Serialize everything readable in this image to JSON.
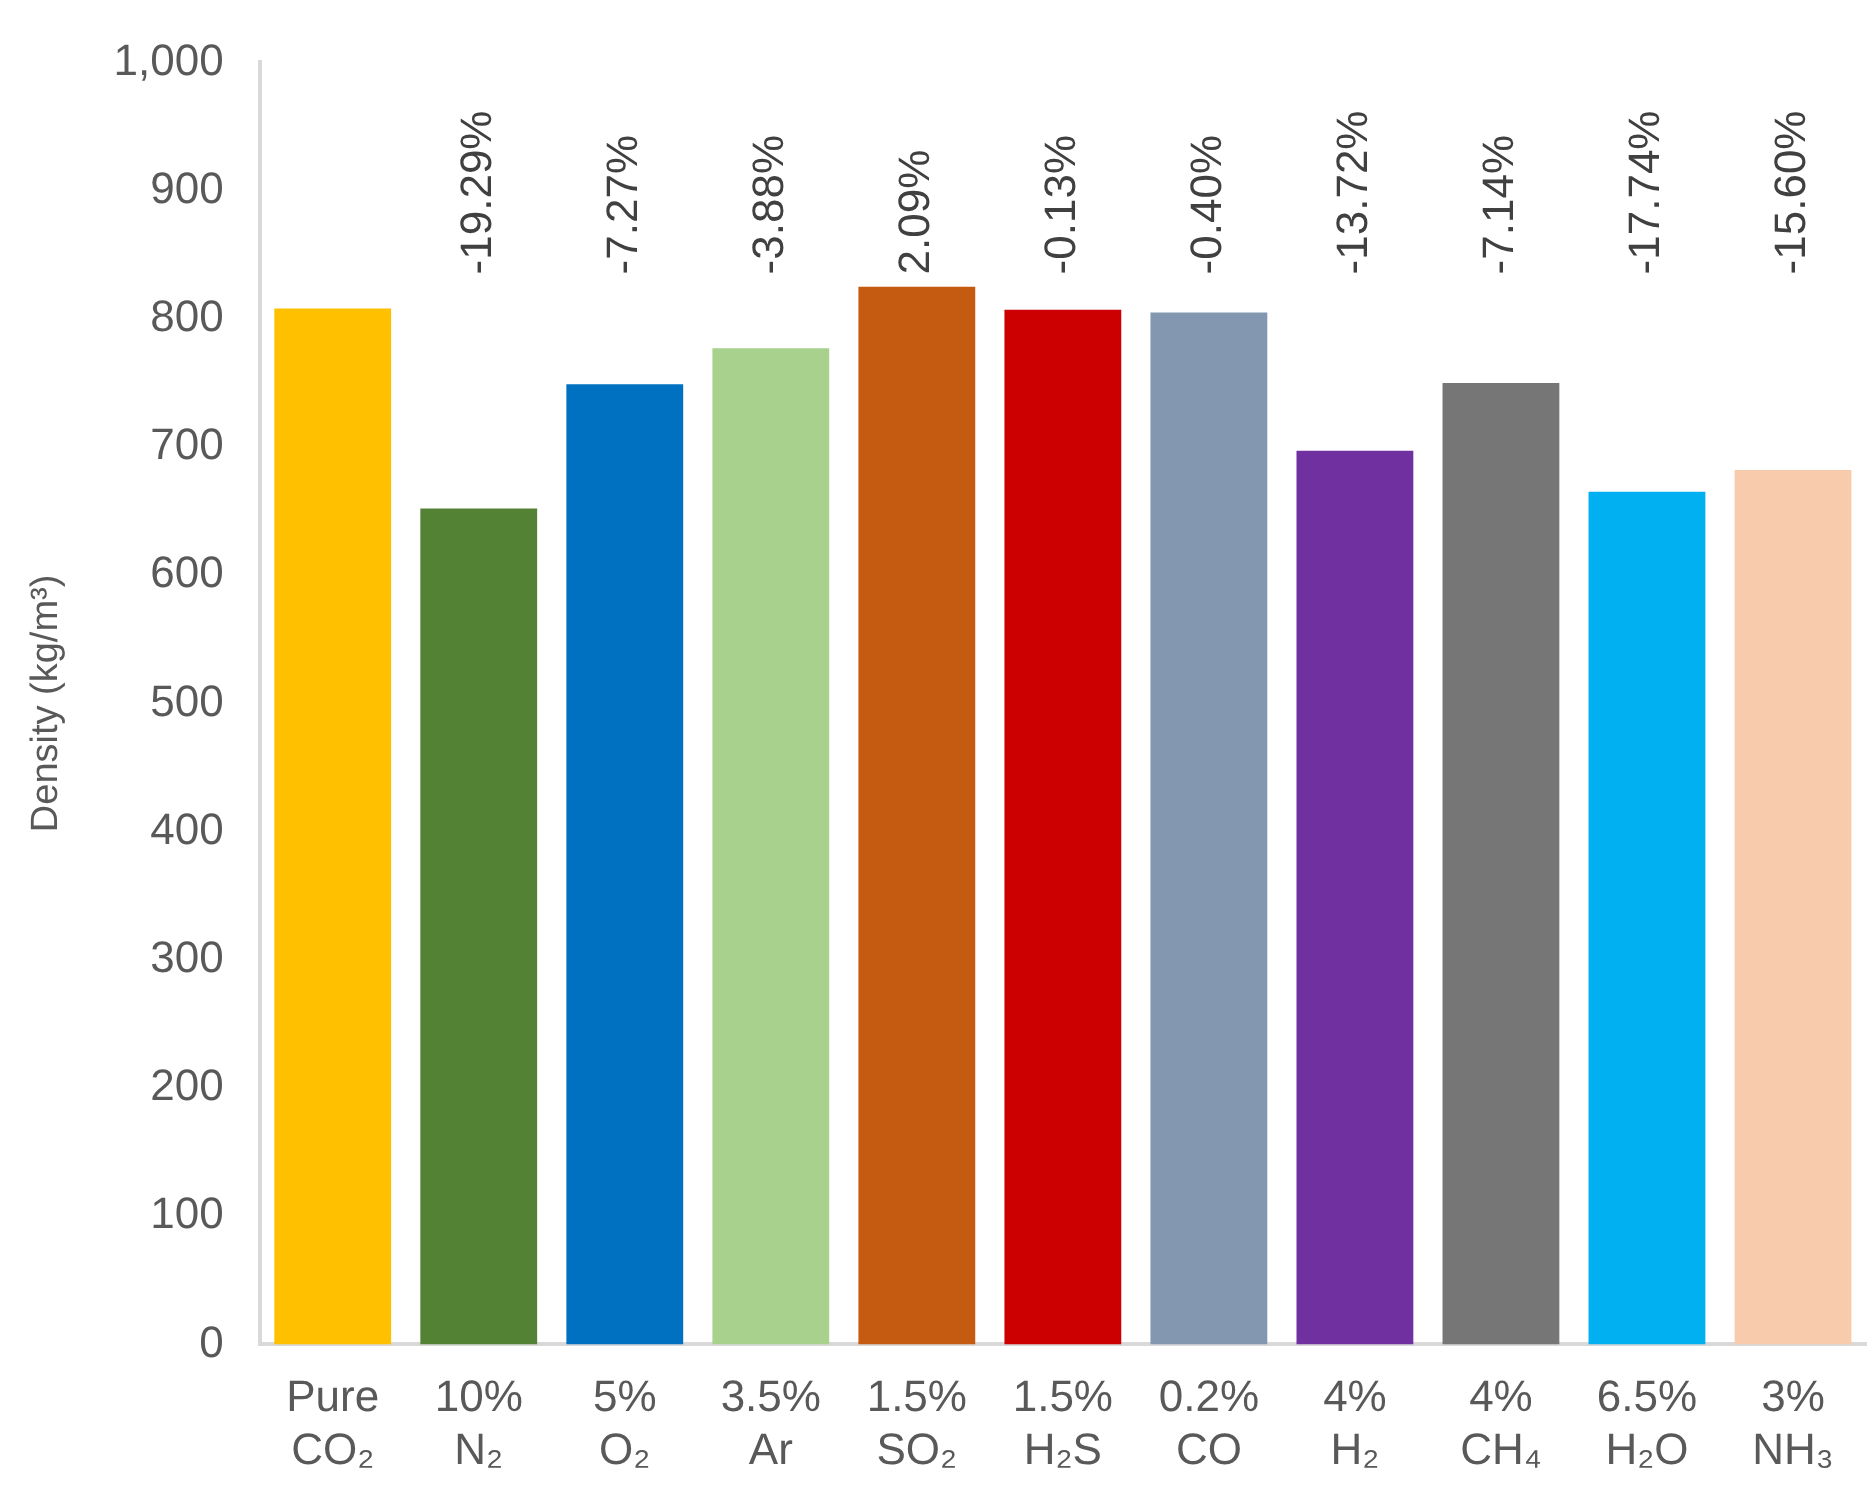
{
  "chart_data": {
    "type": "bar",
    "ylabel": "Density (kg/m³)",
    "categories": [
      "Pure CO₂",
      "10% N₂",
      "5% O₂",
      "3.5% Ar",
      "1.5% SO₂",
      "1.5% H₂S",
      "0.2% CO",
      "4% H₂",
      "4% CH₄",
      "6.5% H₂O",
      "3% NH₃"
    ],
    "values": [
      808,
      652,
      749,
      777,
      825,
      807,
      805,
      697,
      750,
      665,
      682
    ],
    "colors": [
      "#ffc000",
      "#548235",
      "#0070c0",
      "#a9d18e",
      "#c55a11",
      "#cc0000",
      "#8497b0",
      "#7030a0",
      "#767676",
      "#00b0f0",
      "#f8cbad"
    ],
    "annotations": [
      "-19.29%",
      "-7.27%",
      "-3.88%",
      "2.09%",
      "-0.13%",
      "-0.40%",
      "-13.72%",
      "-7.14%",
      "-17.74%",
      "-15.60%"
    ],
    "ylim": [
      0,
      1000
    ],
    "yticks": [
      0,
      {
        "value": 100,
        "label": "100"
      },
      {
        "value": 200,
        "label": "200"
      },
      {
        "value": 300,
        "label": "300"
      },
      {
        "value": 400,
        "label": "400"
      },
      {
        "value": 500,
        "label": "500"
      },
      {
        "value": 600,
        "label": "600"
      },
      {
        "value": 700,
        "label": "700"
      },
      {
        "value": 800,
        "label": "800"
      },
      {
        "value": 900,
        "label": "900"
      },
      {
        "value": 1000,
        "label": "1,000"
      }
    ],
    "grid": false,
    "legend": false
  }
}
